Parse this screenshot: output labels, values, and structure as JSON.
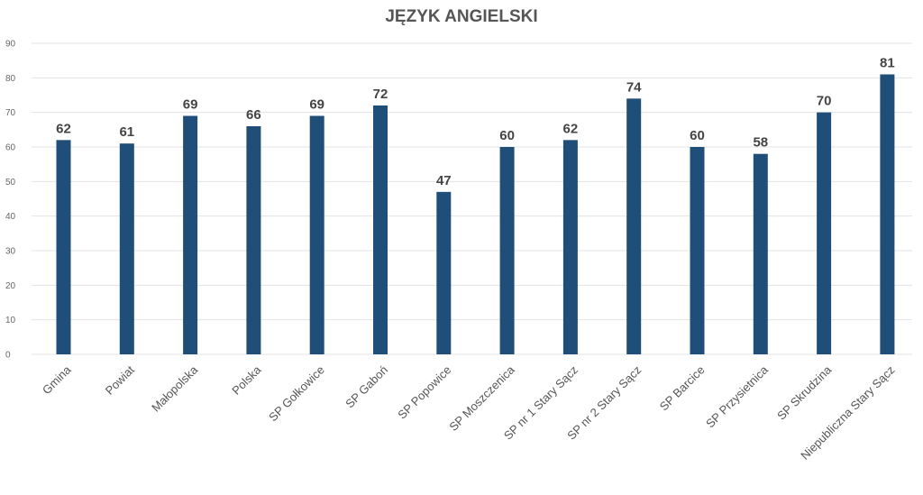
{
  "chart_data": {
    "type": "bar",
    "title": "JĘZYK ANGIELSKI",
    "xlabel": "",
    "ylabel": "",
    "ylim": [
      0,
      90
    ],
    "y_ticks": [
      0,
      10,
      20,
      30,
      40,
      50,
      60,
      70,
      80,
      90
    ],
    "grid": true,
    "legend": "none",
    "bar_color": "#1f4e79",
    "categories": [
      "Gmina",
      "Powiat",
      "Małopolska",
      "Polska",
      "SP Gołkowice",
      "SP Gaboń",
      "SP Popowice",
      "SP Moszczenica",
      "SP nr 1 Stary Sącz",
      "SP nr 2 Stary Sącz",
      "SP Barcice",
      "SP Przysietnica",
      "SP Skrudzina",
      "Niepubliczna Stary Sącz"
    ],
    "values": [
      62,
      61,
      69,
      66,
      69,
      72,
      47,
      60,
      62,
      74,
      60,
      58,
      70,
      81
    ]
  }
}
